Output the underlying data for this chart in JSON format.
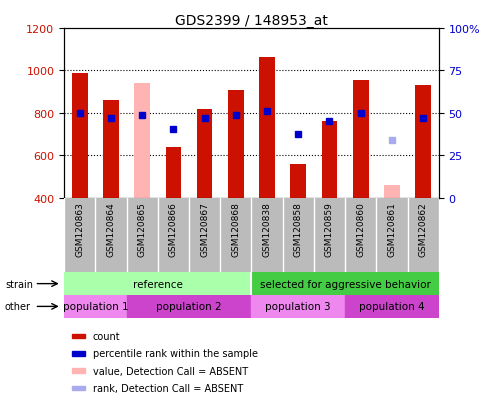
{
  "title": "GDS2399 / 148953_at",
  "samples": [
    "GSM120863",
    "GSM120864",
    "GSM120865",
    "GSM120866",
    "GSM120867",
    "GSM120868",
    "GSM120838",
    "GSM120858",
    "GSM120859",
    "GSM120860",
    "GSM120861",
    "GSM120862"
  ],
  "count_values": [
    990,
    860,
    null,
    640,
    820,
    910,
    1065,
    560,
    760,
    955,
    null,
    930
  ],
  "count_absent": [
    null,
    null,
    940,
    null,
    null,
    null,
    null,
    null,
    null,
    null,
    460,
    null
  ],
  "percentile_values": [
    800,
    775,
    790,
    725,
    778,
    790,
    810,
    700,
    762,
    800,
    null,
    778
  ],
  "percentile_absent": [
    null,
    null,
    null,
    null,
    null,
    null,
    null,
    null,
    null,
    null,
    670,
    null
  ],
  "ylim_left": [
    400,
    1200
  ],
  "ylim_right": [
    0,
    100
  ],
  "yticks_left": [
    400,
    600,
    800,
    1000,
    1200
  ],
  "yticks_right": [
    0,
    25,
    50,
    75,
    100
  ],
  "bar_width": 0.5,
  "count_color": "#CC1100",
  "count_absent_color": "#FFB3B3",
  "percentile_color": "#0000CC",
  "percentile_absent_color": "#AAAAEE",
  "tick_area_color": "#BBBBBB",
  "strain_reference_color": "#AAFFAA",
  "strain_aggressive_color": "#44CC44",
  "other_pop1_color": "#EE88EE",
  "other_pop2_color": "#CC44CC",
  "other_pop3_color": "#EE88EE",
  "other_pop4_color": "#CC44CC",
  "strain_label": "strain",
  "other_label": "other",
  "strain_reference_text": "reference",
  "strain_aggressive_text": "selected for aggressive behavior",
  "pop1_text": "population 1",
  "pop2_text": "population 2",
  "pop3_text": "population 3",
  "pop4_text": "population 4",
  "legend_items": [
    {
      "label": "count",
      "color": "#CC1100"
    },
    {
      "label": "percentile rank within the sample",
      "color": "#0000CC"
    },
    {
      "label": "value, Detection Call = ABSENT",
      "color": "#FFB3B3"
    },
    {
      "label": "rank, Detection Call = ABSENT",
      "color": "#AAAAEE"
    }
  ]
}
